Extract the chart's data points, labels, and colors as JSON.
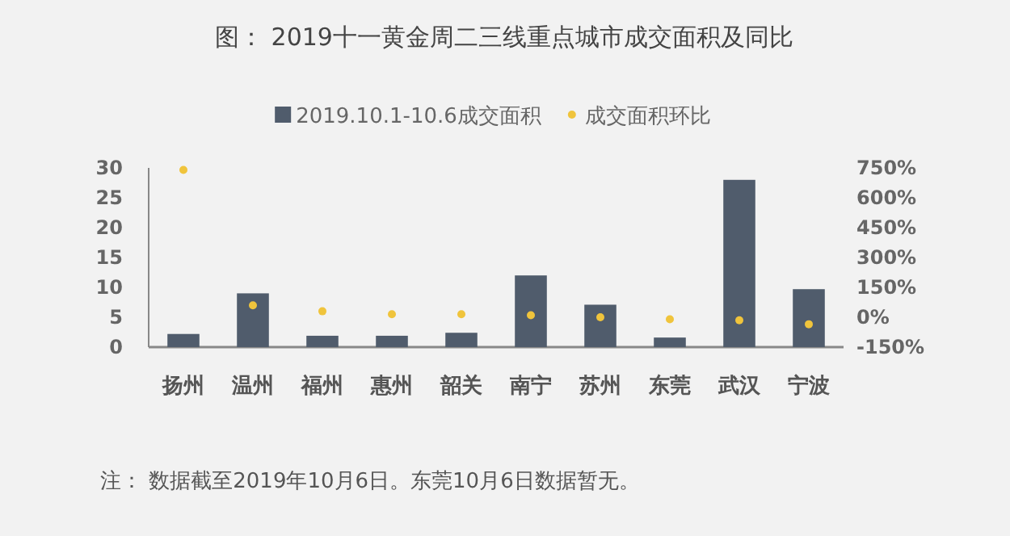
{
  "chart_data": {
    "type": "bar",
    "title": "图：  2019十一黄金周二三线重点城市成交面积及同比",
    "annotations": [
      "注：  数据截至2019年10月6日。东莞10月6日数据暂无。"
    ],
    "categories": [
      "扬州",
      "温州",
      "福州",
      "惠州",
      "韶关",
      "南宁",
      "苏州",
      "东莞",
      "武汉",
      "宁波"
    ],
    "series": [
      {
        "name": "2019.10.1-10.6成交面积",
        "color": "#505c6c",
        "values": [
          2.2,
          9.0,
          1.9,
          1.9,
          2.4,
          12.0,
          7.1,
          1.6,
          28.0,
          9.7
        ]
      },
      {
        "name": "成交面积环比",
        "type": "scatter",
        "axis": "y2",
        "color": "#f0c43c",
        "values": [
          740,
          60,
          30,
          15,
          15,
          10,
          0,
          -10,
          -15,
          -35
        ]
      }
    ],
    "ylim": [
      0,
      30
    ],
    "yticks": [
      0,
      5,
      10,
      15,
      20,
      25,
      30
    ],
    "y2lim": [
      -150,
      750
    ],
    "y2ticks": [
      {
        "value": -150,
        "label": "-150%"
      },
      {
        "value": 0,
        "label": "0%"
      },
      {
        "value": 150,
        "label": "150%"
      },
      {
        "value": 300,
        "label": "300%"
      },
      {
        "value": 450,
        "label": "450%"
      },
      {
        "value": 600,
        "label": "600%"
      },
      {
        "value": 750,
        "label": "750%"
      }
    ],
    "legend": "top",
    "marker": "circle"
  }
}
